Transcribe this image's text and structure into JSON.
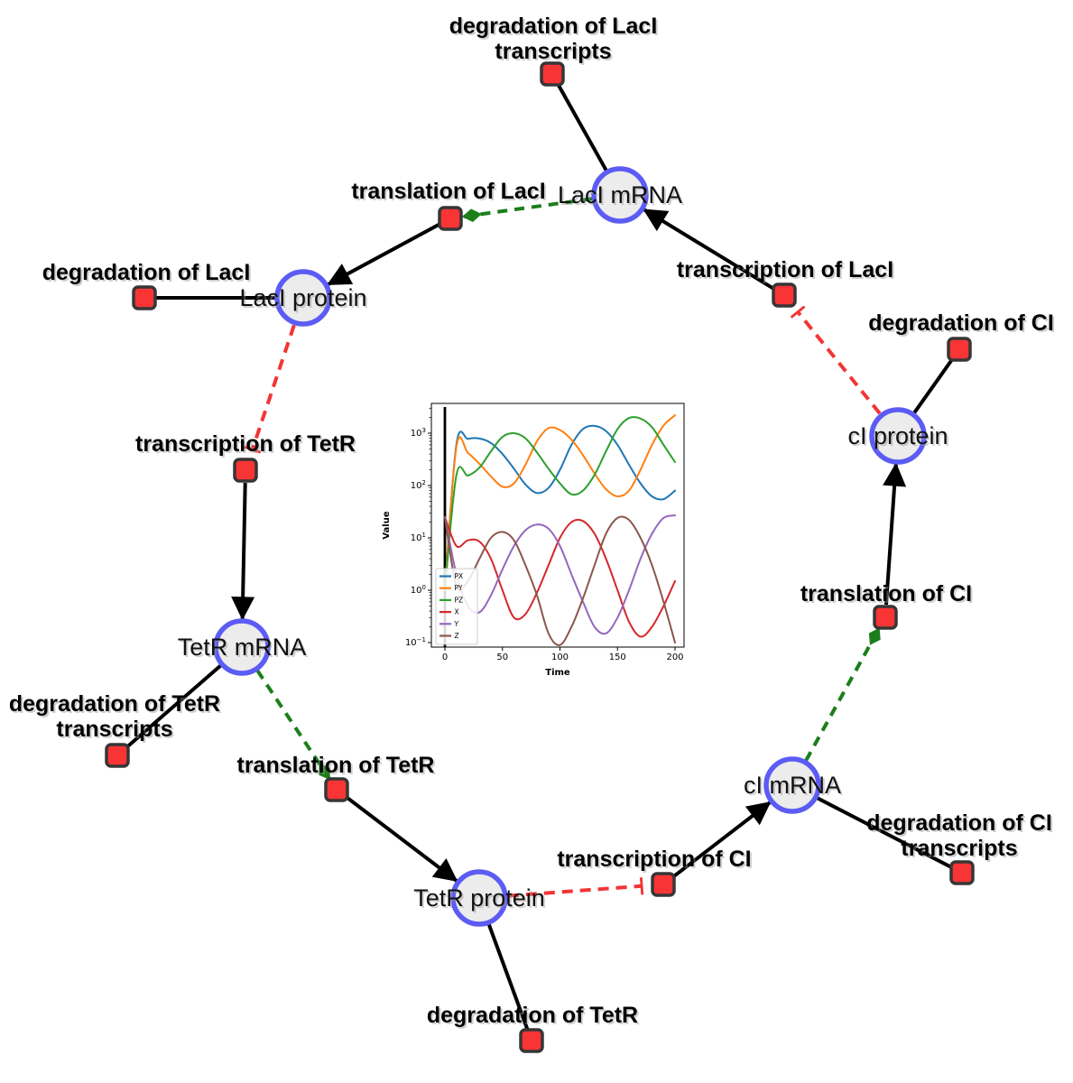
{
  "diagram": {
    "species": [
      {
        "id": "laci-mrna",
        "label": "LacI mRNA"
      },
      {
        "id": "laci-protein",
        "label": "LacI protein"
      },
      {
        "id": "tetr-mrna",
        "label": "TetR mRNA"
      },
      {
        "id": "tetr-protein",
        "label": "TetR protein"
      },
      {
        "id": "ci-mrna",
        "label": "cI mRNA"
      },
      {
        "id": "ci-protein",
        "label": "cI protein"
      }
    ],
    "reactions": [
      {
        "id": "degradation-laci-transcripts",
        "label_lines": [
          "degradation of LacI",
          "transcripts"
        ]
      },
      {
        "id": "translation-laci",
        "label_lines": [
          "translation of LacI"
        ]
      },
      {
        "id": "degradation-laci",
        "label_lines": [
          "degradation of LacI"
        ]
      },
      {
        "id": "transcription-tetr",
        "label_lines": [
          "transcription of TetR"
        ]
      },
      {
        "id": "degradation-tetr-transcripts",
        "label_lines": [
          "degradation of TetR",
          "transcripts"
        ]
      },
      {
        "id": "translation-tetr",
        "label_lines": [
          "translation of TetR"
        ]
      },
      {
        "id": "degradation-tetr",
        "label_lines": [
          "degradation of TetR"
        ]
      },
      {
        "id": "transcription-ci",
        "label_lines": [
          "transcription of CI"
        ]
      },
      {
        "id": "degradation-ci-transcripts",
        "label_lines": [
          "degradation of CI",
          "transcripts"
        ]
      },
      {
        "id": "translation-ci",
        "label_lines": [
          "translation of CI"
        ]
      },
      {
        "id": "degradation-ci",
        "label_lines": [
          "degradation of CI"
        ]
      },
      {
        "id": "transcription-laci",
        "label_lines": [
          "transcription of LacI"
        ]
      }
    ],
    "edges": [
      {
        "source": "transcription-laci",
        "target": "laci-mrna",
        "type": "production"
      },
      {
        "source": "laci-mrna",
        "target": "degradation-laci-transcripts",
        "type": "consumption"
      },
      {
        "source": "laci-mrna",
        "target": "translation-laci",
        "type": "modifier"
      },
      {
        "source": "translation-laci",
        "target": "laci-protein",
        "type": "production"
      },
      {
        "source": "laci-protein",
        "target": "degradation-laci",
        "type": "consumption"
      },
      {
        "source": "laci-protein",
        "target": "transcription-tetr",
        "type": "inhibition"
      },
      {
        "source": "transcription-tetr",
        "target": "tetr-mrna",
        "type": "production"
      },
      {
        "source": "tetr-mrna",
        "target": "degradation-tetr-transcripts",
        "type": "consumption"
      },
      {
        "source": "tetr-mrna",
        "target": "translation-tetr",
        "type": "modifier"
      },
      {
        "source": "translation-tetr",
        "target": "tetr-protein",
        "type": "production"
      },
      {
        "source": "tetr-protein",
        "target": "degradation-tetr",
        "type": "consumption"
      },
      {
        "source": "tetr-protein",
        "target": "transcription-ci",
        "type": "inhibition"
      },
      {
        "source": "transcription-ci",
        "target": "ci-mrna",
        "type": "production"
      },
      {
        "source": "ci-mrna",
        "target": "degradation-ci-transcripts",
        "type": "consumption"
      },
      {
        "source": "ci-mrna",
        "target": "translation-ci",
        "type": "modifier"
      },
      {
        "source": "translation-ci",
        "target": "ci-protein",
        "type": "production"
      },
      {
        "source": "ci-protein",
        "target": "degradation-ci",
        "type": "consumption"
      },
      {
        "source": "ci-protein",
        "target": "transcription-laci",
        "type": "inhibition"
      }
    ],
    "colors": {
      "species_fill": "#ececec",
      "species_stroke": "#5c5cf5",
      "reaction_fill": "#f93434",
      "reaction_stroke": "#363636",
      "production": "#000000",
      "consumption": "#000000",
      "modifier": "#1b7e1b",
      "inhibition": "#f23535"
    }
  },
  "chart_data": {
    "type": "line",
    "title": "",
    "xlabel": "Time",
    "ylabel": "Value",
    "x_scale": "linear",
    "y_scale": "log",
    "xlim": [
      -11.8,
      207.8
    ],
    "ylim_log10": [
      -1.086,
      3.57
    ],
    "x_ticks": [
      0,
      50,
      100,
      150,
      200
    ],
    "y_tick_exponents": [
      -1,
      0,
      1,
      2,
      3
    ],
    "grid": false,
    "legend_position": "lower left",
    "x": [
      0,
      10,
      20,
      30,
      40,
      50,
      60,
      70,
      80,
      90,
      100,
      110,
      120,
      130,
      140,
      150,
      160,
      170,
      180,
      190,
      200
    ],
    "series": [
      {
        "name": "PX",
        "color": "#1f77b4",
        "values": [
          1,
          620,
          780,
          790,
          650,
          400,
          210,
          105,
          72,
          90,
          200,
          600,
          1200,
          1380,
          1100,
          600,
          250,
          110,
          62,
          55,
          80
        ]
      },
      {
        "name": "PY",
        "color": "#ff7f0e",
        "values": [
          1,
          560,
          420,
          260,
          150,
          95,
          110,
          250,
          700,
          1250,
          1150,
          750,
          380,
          170,
          85,
          62,
          80,
          200,
          600,
          1400,
          2200
        ]
      },
      {
        "name": "PZ",
        "color": "#2ca02c",
        "values": [
          1,
          160,
          155,
          220,
          450,
          850,
          1000,
          800,
          430,
          210,
          110,
          68,
          80,
          160,
          450,
          1200,
          1950,
          1900,
          1300,
          600,
          280
        ]
      },
      {
        "name": "X",
        "color": "#d62728",
        "values": [
          25,
          7,
          9,
          8.5,
          4,
          1,
          0.3,
          0.35,
          0.9,
          3,
          10,
          20,
          21,
          12,
          4,
          1,
          0.25,
          0.13,
          0.2,
          0.5,
          1.5
        ]
      },
      {
        "name": "Y",
        "color": "#9467bd",
        "values": [
          25,
          2,
          0.5,
          0.38,
          0.8,
          2.5,
          7,
          14,
          18,
          15,
          7,
          2,
          0.6,
          0.2,
          0.15,
          0.3,
          1,
          4,
          12,
          24,
          27
        ]
      },
      {
        "name": "Z",
        "color": "#8c564b",
        "values": [
          25,
          1.2,
          1.5,
          4,
          10,
          13,
          9,
          3,
          0.8,
          0.15,
          0.09,
          0.2,
          0.7,
          3,
          12,
          24,
          22,
          10,
          3,
          0.6,
          0.1
        ]
      }
    ],
    "annotations": [
      {
        "type": "vline",
        "x": 0,
        "color": "#000000"
      }
    ]
  }
}
